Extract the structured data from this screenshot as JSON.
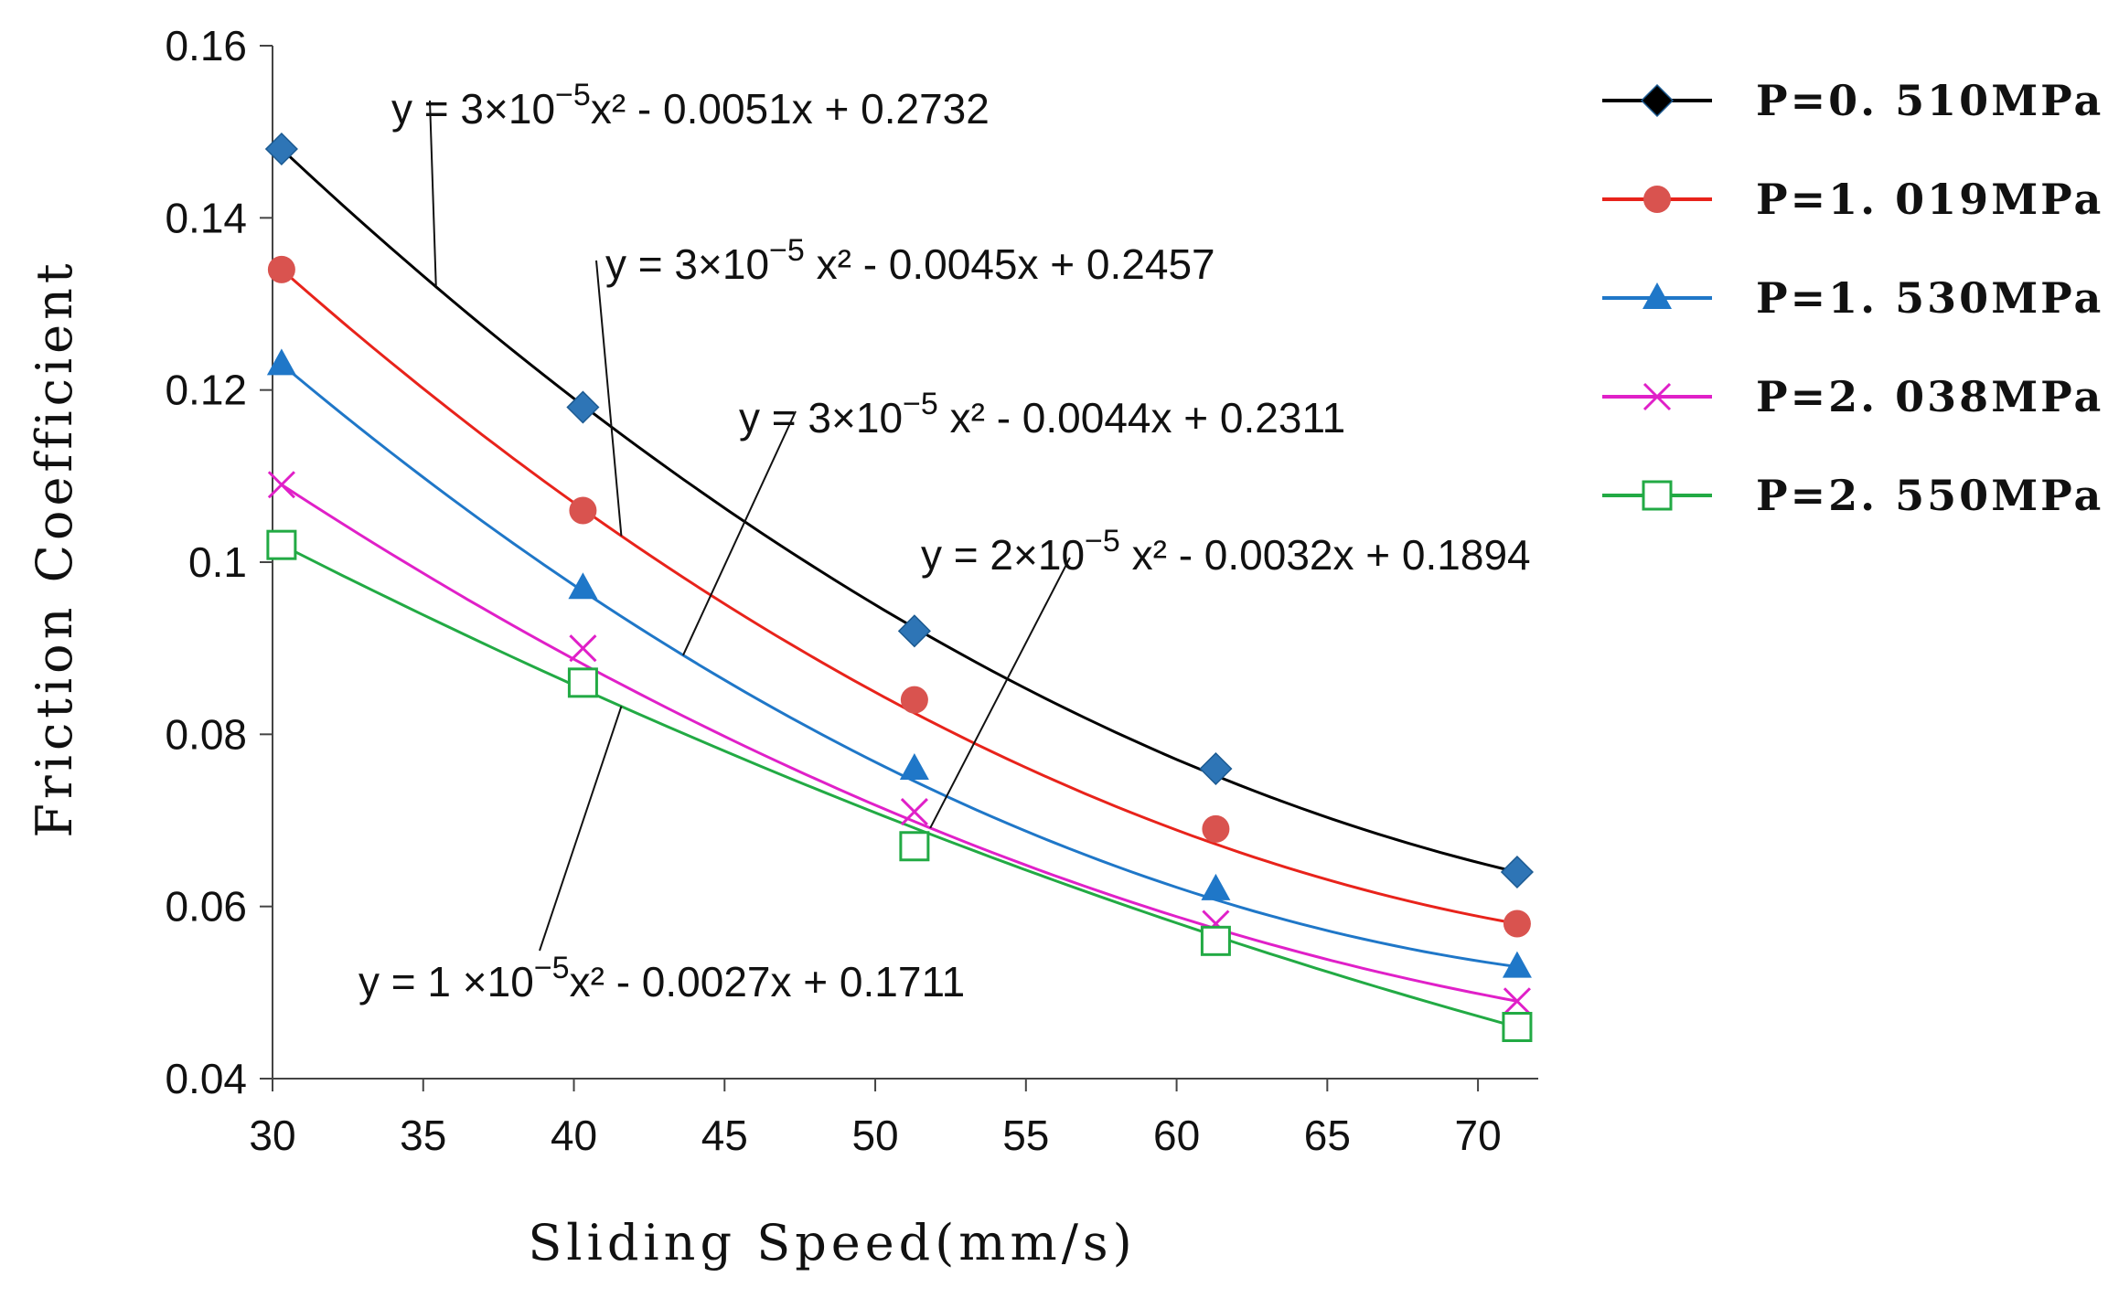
{
  "chart_data": {
    "type": "scatter",
    "xlabel": "Sliding Speed(mm/s)",
    "ylabel": "Friction Coefficient",
    "xlim": [
      30,
      72
    ],
    "ylim": [
      0.04,
      0.16
    ],
    "xticks": [
      "30",
      "35",
      "40",
      "45",
      "50",
      "55",
      "60",
      "65",
      "70"
    ],
    "yticks": [
      "0.04",
      "0.06",
      "0.08",
      "0.1",
      "0.12",
      "0.14",
      "0.16"
    ],
    "x": [
      30.3,
      40.3,
      51.3,
      61.3,
      71.3
    ],
    "series": [
      {
        "name": "P=0. 510MPa",
        "values": [
          0.148,
          0.118,
          0.092,
          0.076,
          0.064
        ],
        "marker": "diamond",
        "color": "#2e75b6",
        "line_color": "#000000",
        "fit": {
          "a": 3e-05,
          "b": -0.0051,
          "c": 0.2732,
          "equation": {
            "lead": "y = 3×10",
            "exp": "−5",
            "rest": "x² - 0.0051x + 0.2732"
          }
        }
      },
      {
        "name": "P=1. 019MPa",
        "values": [
          0.134,
          0.106,
          0.084,
          0.069,
          0.058
        ],
        "marker": "circle",
        "color": "#d9534f",
        "line_color": "#e8231b",
        "fit": {
          "a": 3e-05,
          "b": -0.0045,
          "c": 0.2457,
          "equation": {
            "lead": "y = 3×10",
            "exp": "−5",
            "rest": " x² - 0.0045x + 0.2457"
          }
        }
      },
      {
        "name": "P=1. 530MPa",
        "values": [
          0.123,
          0.097,
          0.076,
          0.062,
          0.053
        ],
        "marker": "triangle",
        "color": "#1f77c8",
        "line_color": "#1f77c8",
        "fit": {
          "a": 3e-05,
          "b": -0.0044,
          "c": 0.2311,
          "equation": {
            "lead": "y = 3×10",
            "exp": "−5",
            "rest": " x² - 0.0044x + 0.2311"
          }
        }
      },
      {
        "name": "P=2. 038MPa",
        "values": [
          0.109,
          0.09,
          0.071,
          0.058,
          0.049
        ],
        "marker": "x",
        "color": "#e020c8",
        "line_color": "#e020c8",
        "fit": {
          "a": 2e-05,
          "b": -0.0032,
          "c": 0.1894,
          "equation": {
            "lead": "y = 2×10",
            "exp": "−5",
            "rest": " x² - 0.0032x + 0.1894"
          }
        }
      },
      {
        "name": "P=2. 550MPa",
        "values": [
          0.102,
          0.086,
          0.067,
          0.056,
          0.046
        ],
        "marker": "square",
        "color": "#22aa44",
        "line_color": "#22aa44",
        "fit": {
          "a": 1e-05,
          "b": -0.0027,
          "c": 0.1711,
          "equation": {
            "lead": "y = 1 ×10",
            "exp": "−5",
            "rest": "x² - 0.0027x + 0.1711"
          }
        }
      }
    ],
    "legend": "right"
  }
}
